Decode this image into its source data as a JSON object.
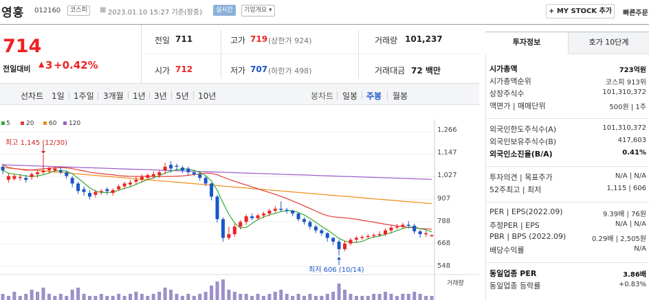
{
  "header": {
    "stock_name": "영흥",
    "code": "012160",
    "market_tag": "코스피",
    "date": "2023.01.10 15:27 기준(장중)",
    "live_tag": "실시간",
    "company_tag": "기업개요 ▾",
    "my_stock_btn": "+ MY STOCK 추가",
    "quick_btn": "빠른주문"
  },
  "price": {
    "current": "714",
    "change_label": "전일대비",
    "change_arrow": "▲",
    "change_value": "3",
    "change_pct": "+0.42%"
  },
  "quote": {
    "prev_label": "전일",
    "prev_value": "711",
    "open_label": "시가",
    "open_value": "712",
    "high_label": "고가",
    "high_value": "719",
    "upper_limit": "(상한가 924)",
    "low_label": "저가",
    "low_value": "707",
    "lower_limit": "(하한가 498)",
    "volume_label": "거래량",
    "volume_value": "101,237",
    "amount_label": "거래대금",
    "amount_value": "72 백만"
  },
  "toolbar": {
    "line_chart": "선차트",
    "periods": [
      "1일",
      "1주일",
      "3개월",
      "1년",
      "3년",
      "5년",
      "10년"
    ],
    "candle_chart": "봉차트",
    "candle_periods": [
      "일봉",
      "주봉",
      "월봉"
    ],
    "active_candle": "주봉"
  },
  "chart_data": {
    "type": "candlestick",
    "ma_legend": [
      {
        "label": "5",
        "color": "#33aa33"
      },
      {
        "label": "20",
        "color": "#e23a3a"
      },
      {
        "label": "60",
        "color": "#f08a14"
      },
      {
        "label": "120",
        "color": "#9b59c8"
      }
    ],
    "yaxis_ticks": [
      "1,266",
      "1,147",
      "1,027",
      "907",
      "788",
      "668",
      "548"
    ],
    "ylim": [
      548,
      1266
    ],
    "high_annotation": "최고 1,145 (12/30)",
    "low_annotation": "최저 606 (10/14)",
    "volume_label": "거래량",
    "candles": [
      [
        1080,
        1060,
        1095,
        1040
      ],
      [
        1010,
        1030,
        1045,
        995
      ],
      [
        1015,
        1030,
        1040,
        1005
      ],
      [
        1020,
        1025,
        1040,
        1005
      ],
      [
        1020,
        1010,
        1035,
        995
      ],
      [
        1025,
        1040,
        1050,
        1010
      ],
      [
        1040,
        1050,
        1060,
        1020
      ],
      [
        1050,
        1060,
        1145,
        1040
      ],
      [
        1060,
        1070,
        1080,
        1045
      ],
      [
        1060,
        1070,
        1080,
        1050
      ],
      [
        1060,
        1050,
        1075,
        1040
      ],
      [
        1050,
        1030,
        1060,
        1015
      ],
      [
        1020,
        990,
        1030,
        970
      ],
      [
        990,
        950,
        1000,
        935
      ],
      [
        960,
        945,
        975,
        925
      ],
      [
        940,
        920,
        955,
        905
      ],
      [
        930,
        945,
        955,
        915
      ],
      [
        945,
        950,
        960,
        930
      ],
      [
        960,
        950,
        970,
        930
      ],
      [
        940,
        955,
        965,
        925
      ],
      [
        960,
        975,
        985,
        950
      ],
      [
        975,
        990,
        1000,
        960
      ],
      [
        985,
        995,
        1010,
        975
      ],
      [
        1000,
        1010,
        1025,
        985
      ],
      [
        1010,
        1025,
        1040,
        995
      ],
      [
        1020,
        1035,
        1045,
        1010
      ],
      [
        1030,
        1040,
        1055,
        1015
      ],
      [
        1035,
        1050,
        1060,
        1020
      ],
      [
        1060,
        1080,
        1100,
        1040
      ],
      [
        1090,
        1070,
        1110,
        1050
      ],
      [
        1085,
        1080,
        1095,
        1060
      ],
      [
        1075,
        1060,
        1085,
        1045
      ],
      [
        1070,
        1050,
        1080,
        1035
      ],
      [
        1050,
        1040,
        1060,
        1030
      ],
      [
        1040,
        1020,
        1055,
        1005
      ],
      [
        1020,
        990,
        1030,
        975
      ],
      [
        990,
        920,
        995,
        900
      ],
      [
        920,
        800,
        930,
        780
      ],
      [
        800,
        700,
        810,
        680
      ],
      [
        700,
        720,
        760,
        690
      ],
      [
        720,
        760,
        775,
        705
      ],
      [
        760,
        785,
        795,
        745
      ],
      [
        785,
        815,
        825,
        770
      ],
      [
        815,
        805,
        830,
        795
      ],
      [
        805,
        820,
        830,
        795
      ],
      [
        820,
        830,
        840,
        805
      ],
      [
        830,
        845,
        855,
        815
      ],
      [
        845,
        855,
        870,
        835
      ],
      [
        855,
        850,
        895,
        840
      ],
      [
        850,
        845,
        860,
        830
      ],
      [
        845,
        830,
        850,
        815
      ],
      [
        830,
        800,
        835,
        790
      ],
      [
        800,
        785,
        810,
        770
      ],
      [
        785,
        760,
        795,
        745
      ],
      [
        760,
        740,
        770,
        725
      ],
      [
        740,
        725,
        750,
        710
      ],
      [
        725,
        700,
        730,
        680
      ],
      [
        700,
        680,
        705,
        660
      ],
      [
        680,
        640,
        690,
        606
      ],
      [
        640,
        670,
        685,
        630
      ],
      [
        670,
        690,
        700,
        660
      ],
      [
        690,
        700,
        710,
        675
      ],
      [
        700,
        705,
        715,
        690
      ],
      [
        705,
        710,
        720,
        695
      ],
      [
        710,
        715,
        725,
        700
      ],
      [
        715,
        720,
        735,
        705
      ],
      [
        720,
        740,
        750,
        710
      ],
      [
        740,
        755,
        765,
        725
      ],
      [
        755,
        760,
        775,
        745
      ],
      [
        760,
        770,
        780,
        750
      ],
      [
        770,
        765,
        790,
        750
      ],
      [
        765,
        735,
        775,
        720
      ],
      [
        735,
        720,
        745,
        700
      ],
      [
        720,
        725,
        740,
        705
      ],
      [
        711,
        714,
        719,
        707
      ]
    ]
  },
  "panel": {
    "tab_active": "투자정보",
    "tab_other": "호가 10단계",
    "rows": [
      {
        "label": "시가총액",
        "value": "723억원",
        "bold": true
      },
      {
        "label": "시가총액순위",
        "value": "코스피 913위"
      },
      {
        "label": "상장주식수",
        "value": "101,310,372"
      },
      {
        "label": "액면가 | 매매단위",
        "value": "500원 | 1주"
      },
      {
        "label": "외국인한도주식수(A)",
        "value": "101,310,372"
      },
      {
        "label": "외국인보유주식수(B)",
        "value": "417,603"
      },
      {
        "label": "외국인소진율(B/A)",
        "value": "0.41%",
        "bold": true
      },
      {
        "label": "투자의견 | 목표주가",
        "value": "N/A | N/A"
      },
      {
        "label": "52주최고 | 최저",
        "value": "1,115 | 606"
      },
      {
        "label": "PER | EPS(2022.09)",
        "value": "9.39배 | 76원"
      },
      {
        "label": "추정PER | EPS",
        "value": "N/A | N/A"
      },
      {
        "label": "PBR | BPS (2022.09)",
        "value": "0.29배 | 2,505원"
      },
      {
        "label": "배당수익률",
        "value": "N/A"
      },
      {
        "label": "동일업종 PER",
        "value": "3.86배",
        "bold": true
      },
      {
        "label": "동일업종 등락률",
        "value": "+0.83%",
        "red": true
      }
    ]
  }
}
